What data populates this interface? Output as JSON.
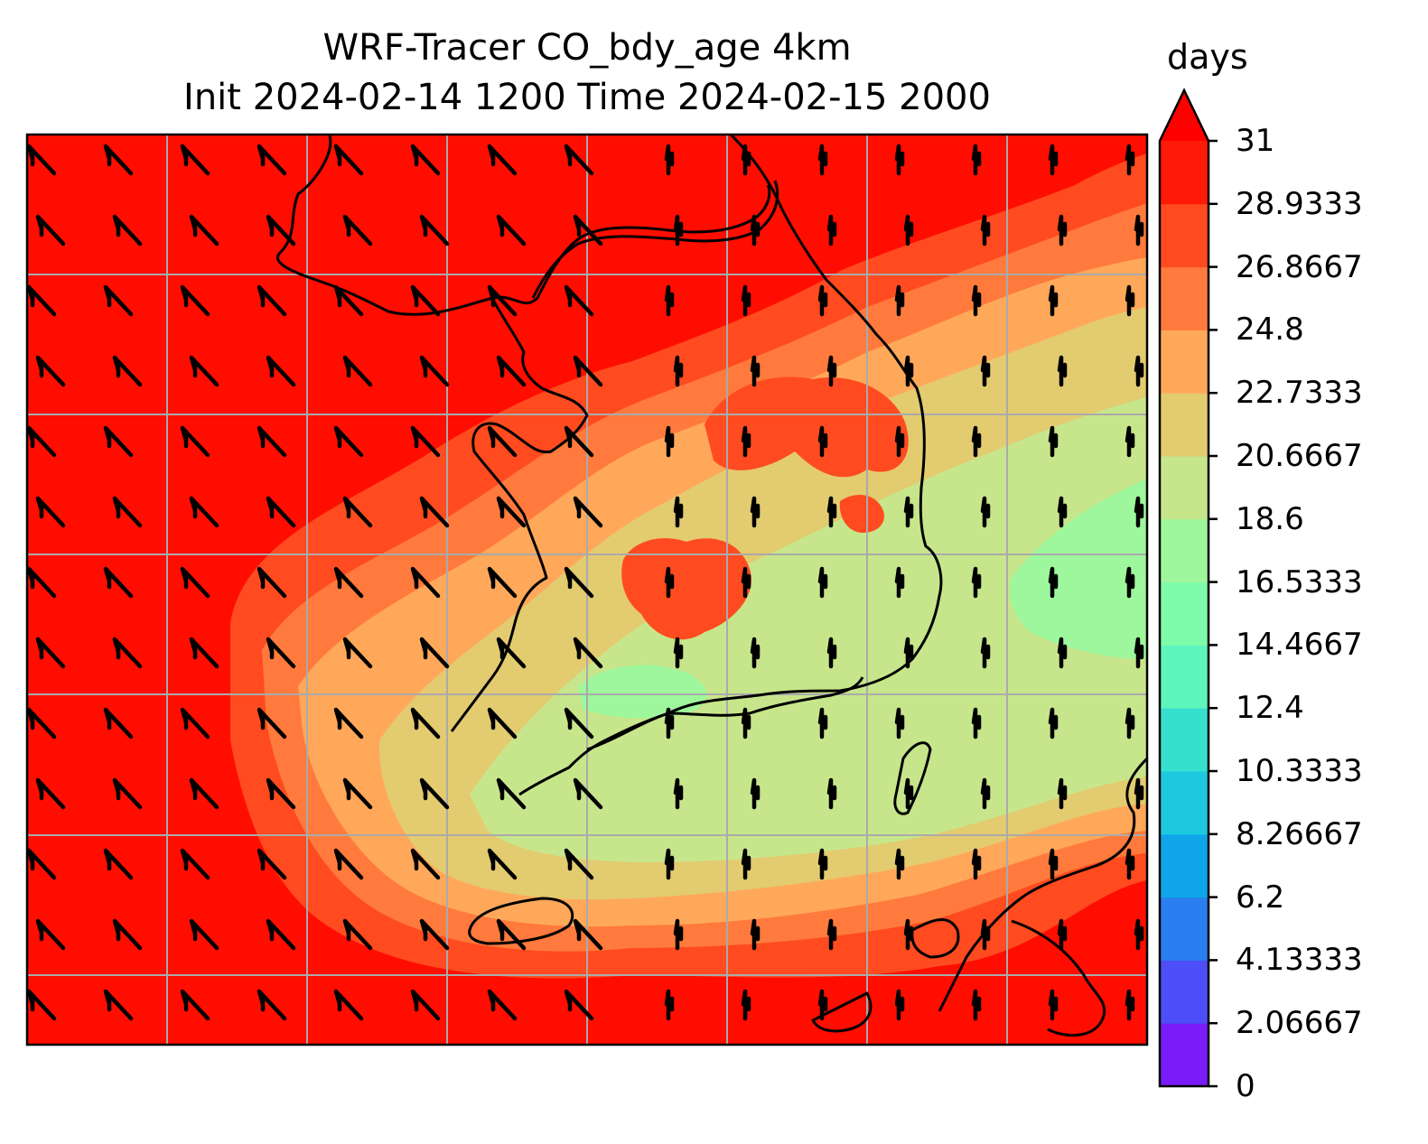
{
  "figure": {
    "title_line1": "WRF-Tracer CO_bdy_age 4km",
    "title_line2": "Init 2024-02-14 1200 Time 2024-02-15 2000"
  },
  "map": {
    "field": "CO_bdy_age",
    "gridlines": true,
    "overlay": "wind barbs",
    "coastlines": true,
    "region_colors": {
      "outer": "#ff0d00",
      "band_27": "#ff4b1f",
      "band_25": "#ff7a3c",
      "band_23": "#ffa85a",
      "band_21": "#e3cb70",
      "band_19": "#c7e68b",
      "band_17": "#9ef79c"
    }
  },
  "colorbar": {
    "unit": "days",
    "extend": "max",
    "ticks": [
      "31",
      "28.9333",
      "26.8667",
      "24.8",
      "22.7333",
      "20.6667",
      "18.6",
      "16.5333",
      "14.4667",
      "12.4",
      "10.3333",
      "8.26667",
      "6.2",
      "4.13333",
      "2.06667",
      "0"
    ],
    "colors": [
      "#7a1cfa",
      "#4d4ef7",
      "#2a7ef0",
      "#0ea6e8",
      "#1dc9df",
      "#36e0cf",
      "#5ef5bd",
      "#7efca9",
      "#9ef79c",
      "#c7e68b",
      "#e3cb70",
      "#ffa85a",
      "#ff7a3c",
      "#ff4b1f",
      "#ff1a08"
    ],
    "extend_color": "#ff0000"
  }
}
